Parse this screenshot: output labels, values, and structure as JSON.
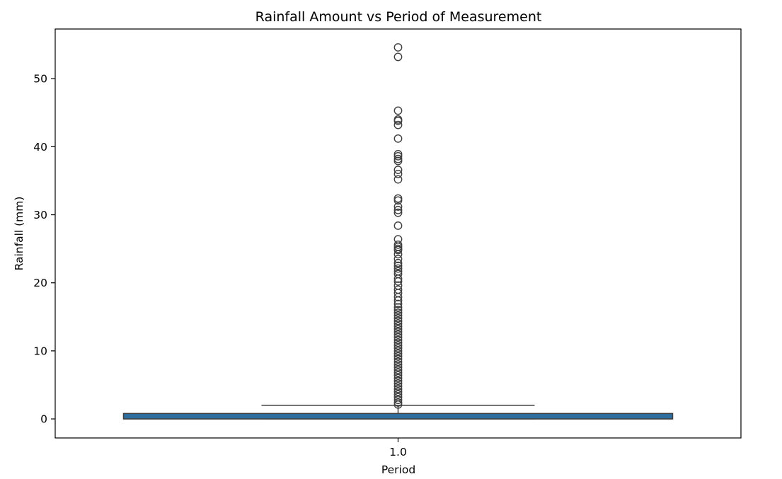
{
  "chart_data": {
    "type": "box",
    "title": "Rainfall Amount vs Period of Measurement",
    "xlabel": "Period",
    "ylabel": "Rainfall (mm)",
    "categories": [
      "1.0"
    ],
    "ylim": [
      -2.8,
      57.3
    ],
    "yticks": [
      "0",
      "10",
      "20",
      "30",
      "40",
      "50"
    ],
    "grid": false,
    "legend": "none",
    "box": {
      "category": "1.0",
      "whisker_low": 0,
      "q1": 0,
      "median": 0,
      "q3": 0.8,
      "whisker_high": 2.0
    },
    "outliers": [
      54.6,
      53.2,
      45.3,
      44.0,
      43.8,
      43.2,
      41.2,
      38.9,
      38.6,
      38.2,
      37.9,
      36.6,
      36.0,
      35.2,
      32.4,
      32.1,
      31.2,
      30.7,
      30.3,
      28.4,
      26.4,
      25.6,
      25.3,
      25.0,
      24.8,
      24.2,
      23.5,
      22.9,
      22.5,
      22.1,
      21.7,
      21.3,
      20.6,
      20.2,
      19.6,
      19.0,
      18.5,
      17.9,
      17.4,
      16.9,
      16.4,
      16.0,
      15.6,
      15.2,
      14.8,
      14.4,
      14.0,
      13.6,
      13.2,
      12.8,
      12.4,
      12.0,
      11.6,
      11.2,
      10.8,
      10.4,
      10.0,
      9.6,
      9.2,
      8.8,
      8.4,
      8.0,
      7.6,
      7.2,
      6.8,
      6.4,
      6.0,
      5.6,
      5.2,
      4.8,
      4.4,
      4.0,
      3.6,
      3.2,
      2.8,
      2.4,
      2.1
    ],
    "colors": {
      "box_fill": "#2f6f9f",
      "line": "#3f3f3f",
      "axis": "#000000"
    }
  }
}
